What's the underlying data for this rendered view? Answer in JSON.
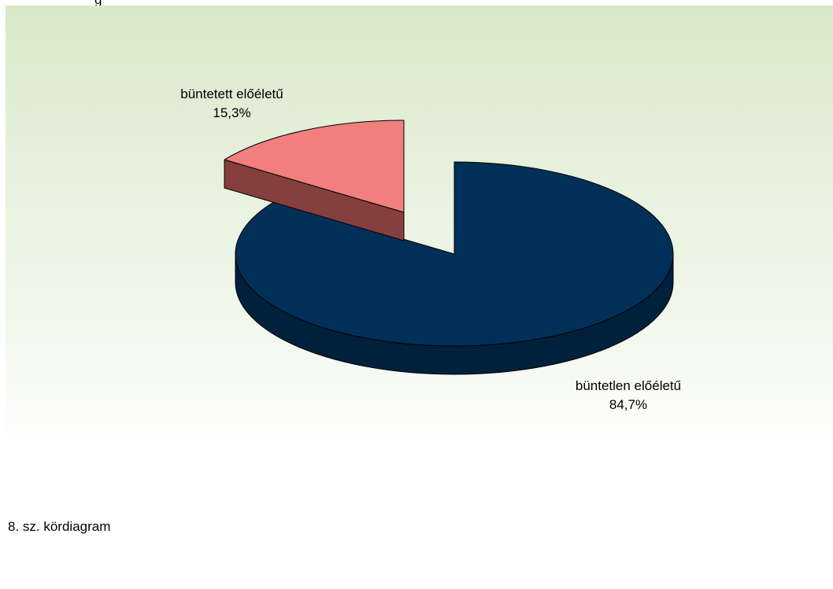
{
  "top_text": "g",
  "caption": "8. sz. kördiagram",
  "chart_data": {
    "type": "pie",
    "three_d": true,
    "slices": [
      {
        "label": "büntetlen előéletű",
        "value": 84.7,
        "value_label": "84,7%",
        "color": "#003057",
        "side_color": "#00213c"
      },
      {
        "label": "büntetett előéletű",
        "value": 15.3,
        "value_label": "15,3%",
        "color": "#f07f7e",
        "side_color": "#843f3e",
        "exploded": true
      }
    ],
    "background_gradient": [
      "#d8e8c8",
      "#ffffff"
    ]
  }
}
